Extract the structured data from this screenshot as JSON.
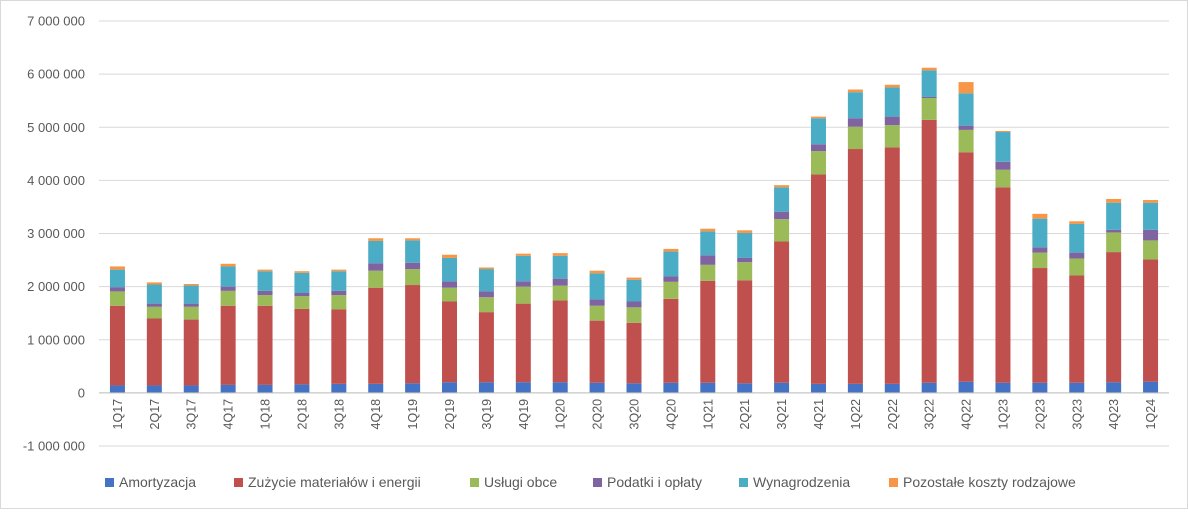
{
  "chart_data": {
    "type": "bar",
    "stacked": true,
    "title": "",
    "xlabel": "",
    "ylabel": "",
    "ylim": [
      -1000000,
      7000000
    ],
    "ytick_values": [
      -1000000,
      0,
      1000000,
      2000000,
      3000000,
      4000000,
      5000000,
      6000000,
      7000000
    ],
    "ytick_labels": [
      "-1 000 000",
      "0",
      "1 000 000",
      "2 000 000",
      "3 000 000",
      "4 000 000",
      "5 000 000",
      "6 000 000",
      "7 000 000"
    ],
    "grid": true,
    "legend_position": "bottom",
    "categories": [
      "1Q17",
      "2Q17",
      "3Q17",
      "4Q17",
      "1Q18",
      "2Q18",
      "3Q18",
      "4Q18",
      "1Q19",
      "2Q19",
      "3Q19",
      "4Q19",
      "1Q20",
      "2Q20",
      "3Q20",
      "4Q20",
      "1Q21",
      "2Q21",
      "3Q21",
      "4Q21",
      "1Q22",
      "2Q22",
      "3Q22",
      "4Q22",
      "1Q23",
      "2Q23",
      "3Q23",
      "4Q23",
      "1Q24"
    ],
    "series": [
      {
        "name": "Amortyzacja",
        "color": "#4472c4",
        "values": [
          140000,
          140000,
          140000,
          150000,
          150000,
          160000,
          170000,
          170000,
          180000,
          200000,
          200000,
          200000,
          200000,
          190000,
          180000,
          190000,
          190000,
          180000,
          190000,
          170000,
          170000,
          170000,
          190000,
          210000,
          190000,
          190000,
          190000,
          200000,
          210000
        ]
      },
      {
        "name": "Zużycie materiałów i energii",
        "color": "#c0504d",
        "values": [
          1500000,
          1260000,
          1240000,
          1490000,
          1490000,
          1420000,
          1400000,
          1810000,
          1850000,
          1520000,
          1320000,
          1480000,
          1540000,
          1170000,
          1140000,
          1580000,
          1920000,
          1940000,
          2660000,
          3940000,
          4420000,
          4450000,
          4950000,
          4320000,
          3680000,
          2160000,
          2020000,
          2450000,
          2300000
        ]
      },
      {
        "name": "Usługi obce",
        "color": "#9bbb59",
        "values": [
          270000,
          220000,
          240000,
          280000,
          200000,
          240000,
          270000,
          320000,
          300000,
          260000,
          280000,
          320000,
          280000,
          280000,
          290000,
          320000,
          300000,
          340000,
          420000,
          440000,
          420000,
          420000,
          410000,
          420000,
          330000,
          290000,
          320000,
          370000,
          360000
        ]
      },
      {
        "name": "Podatki i opłaty",
        "color": "#8064a2",
        "values": [
          80000,
          60000,
          60000,
          80000,
          80000,
          60000,
          80000,
          140000,
          120000,
          120000,
          110000,
          100000,
          130000,
          120000,
          110000,
          100000,
          180000,
          80000,
          140000,
          130000,
          160000,
          160000,
          20000,
          80000,
          150000,
          100000,
          110000,
          50000,
          200000
        ]
      },
      {
        "name": "Wynagrodzenia",
        "color": "#4bacc6",
        "values": [
          330000,
          360000,
          340000,
          380000,
          370000,
          380000,
          370000,
          420000,
          420000,
          440000,
          420000,
          480000,
          430000,
          490000,
          410000,
          470000,
          450000,
          470000,
          460000,
          490000,
          490000,
          550000,
          500000,
          610000,
          560000,
          540000,
          540000,
          510000,
          510000
        ]
      },
      {
        "name": "Pozostałe koszty rodzajowe",
        "color": "#f79646",
        "values": [
          60000,
          40000,
          30000,
          50000,
          30000,
          30000,
          30000,
          50000,
          40000,
          60000,
          30000,
          40000,
          50000,
          50000,
          40000,
          50000,
          50000,
          50000,
          40000,
          30000,
          50000,
          50000,
          50000,
          210000,
          20000,
          90000,
          50000,
          70000,
          50000
        ]
      }
    ]
  }
}
